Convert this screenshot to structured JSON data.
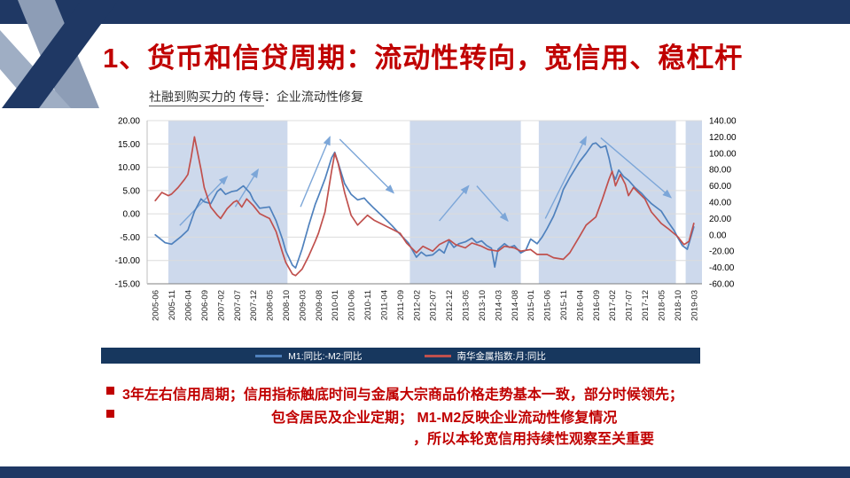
{
  "slide": {
    "title": "1、货币和信贷周期：流动性转向，宽信用、稳杠杆",
    "subtitle_underlined": "社融到购买力的 传导",
    "subtitle_rest": "：企业流动性修复"
  },
  "legend": {
    "items": [
      {
        "label": "M1:同比:-M2:同比",
        "color": "#4F81BD"
      },
      {
        "label": "南华金属指数:月:同比",
        "color": "#C0504D"
      }
    ]
  },
  "bullets": {
    "b1": "3年左右信用周期；信用指标触底时间与金属大宗商品价格走势基本一致，部分时候领先；",
    "b2": "包含居民及企业定期； M1-M2反映企业流动性修复情况",
    "b3": "，所以本轮宽信用持续性观察至关重要"
  },
  "colors": {
    "navy": "#1F3864",
    "legend_bar": "#17375E",
    "title_red": "#C00000",
    "series_blue": "#4F81BD",
    "series_red": "#C0504D",
    "band": "#CDD9EC",
    "grid": "#DCDCDC",
    "arrow": "#7CA6D8",
    "motif_slate": "#8D9DB6"
  },
  "chart_data": {
    "type": "line",
    "title": "社融到购买力的 传导：企业流动性修复",
    "x_labels": [
      "2005-06",
      "2005-11",
      "2006-04",
      "2006-09",
      "2007-02",
      "2007-07",
      "2007-12",
      "2008-05",
      "2008-10",
      "2009-03",
      "2009-08",
      "2010-01",
      "2010-06",
      "2010-11",
      "2011-04",
      "2011-09",
      "2012-02",
      "2012-07",
      "2012-12",
      "2013-05",
      "2013-10",
      "2014-03",
      "2014-08",
      "2015-01",
      "2015-06",
      "2015-11",
      "2016-04",
      "2016-09",
      "2017-02",
      "2017-07",
      "2017-12",
      "2018-05",
      "2018-10",
      "2019-03"
    ],
    "left_axis": {
      "min": -15,
      "max": 20,
      "ticks": [
        "20.00",
        "15.00",
        "10.00",
        "5.00",
        "0.00",
        "-5.00",
        "-10.00",
        "-15.00"
      ]
    },
    "right_axis": {
      "min": -60,
      "max": 140,
      "ticks": [
        "140.00",
        "120.00",
        "100.00",
        "80.00",
        "60.00",
        "40.00",
        "20.00",
        "0.00",
        "-20.00",
        "-40.00",
        "-60.00"
      ]
    },
    "shaded_bands": [
      [
        0.8,
        8.1
      ],
      [
        15.6,
        22.4
      ],
      [
        23.5,
        31.9
      ],
      [
        32.5,
        33.9
      ]
    ],
    "trend_arrows": [
      [
        1.5,
        -2.5,
        4.4,
        8
      ],
      [
        4.9,
        1.5,
        6.3,
        9.5
      ],
      [
        8.9,
        1.5,
        10.7,
        16.5
      ],
      [
        11.3,
        16,
        14.6,
        4.5
      ],
      [
        17.4,
        -1.5,
        19.2,
        6
      ],
      [
        19.7,
        6,
        21.6,
        -1.5
      ],
      [
        23.9,
        -1,
        26.4,
        16.5
      ],
      [
        27.3,
        16.3,
        31.6,
        3.5
      ]
    ],
    "series": [
      {
        "name": "M1:同比:-M2:同比",
        "axis": "left",
        "color": "#4F81BD",
        "points": [
          [
            0,
            -4.5
          ],
          [
            0.6,
            -6.2
          ],
          [
            1,
            -6.5
          ],
          [
            1.6,
            -4.8
          ],
          [
            2,
            -3.5
          ],
          [
            2.4,
            0.5
          ],
          [
            2.8,
            3.2
          ],
          [
            3,
            2.6
          ],
          [
            3.4,
            2.2
          ],
          [
            3.8,
            4.8
          ],
          [
            4,
            5.4
          ],
          [
            4.3,
            4.2
          ],
          [
            4.7,
            4.8
          ],
          [
            5,
            5
          ],
          [
            5.4,
            6
          ],
          [
            5.8,
            4.5
          ],
          [
            6,
            3
          ],
          [
            6.4,
            1.2
          ],
          [
            7,
            1.5
          ],
          [
            7.4,
            -1.5
          ],
          [
            7.8,
            -5.5
          ],
          [
            8,
            -8
          ],
          [
            8.4,
            -11
          ],
          [
            8.6,
            -11.6
          ],
          [
            9,
            -7.5
          ],
          [
            9.4,
            -2.5
          ],
          [
            9.8,
            2
          ],
          [
            10,
            3.8
          ],
          [
            10.4,
            7.5
          ],
          [
            10.8,
            12
          ],
          [
            11,
            13.2
          ],
          [
            11.2,
            11
          ],
          [
            11.6,
            6.5
          ],
          [
            12,
            4.2
          ],
          [
            12.4,
            3
          ],
          [
            12.8,
            3.4
          ],
          [
            13,
            2.6
          ],
          [
            13.4,
            1.2
          ],
          [
            14,
            -0.8
          ],
          [
            14.5,
            -2.5
          ],
          [
            15,
            -4.4
          ],
          [
            15.5,
            -6.2
          ],
          [
            16,
            -9.3
          ],
          [
            16.3,
            -8.2
          ],
          [
            16.6,
            -9
          ],
          [
            17,
            -8.8
          ],
          [
            17.4,
            -7.6
          ],
          [
            17.7,
            -8.4
          ],
          [
            18,
            -5.8
          ],
          [
            18.3,
            -7.2
          ],
          [
            18.6,
            -6.4
          ],
          [
            19,
            -6
          ],
          [
            19.4,
            -5.2
          ],
          [
            19.7,
            -6.2
          ],
          [
            20,
            -5.8
          ],
          [
            20.3,
            -6.8
          ],
          [
            20.6,
            -7.4
          ],
          [
            20.8,
            -11.4
          ],
          [
            21,
            -7.6
          ],
          [
            21.4,
            -6.4
          ],
          [
            21.7,
            -7.2
          ],
          [
            22,
            -6.8
          ],
          [
            22.4,
            -8.4
          ],
          [
            22.7,
            -7.8
          ],
          [
            23,
            -5.4
          ],
          [
            23.4,
            -6.4
          ],
          [
            23.7,
            -5
          ],
          [
            24,
            -3.2
          ],
          [
            24.4,
            -0.5
          ],
          [
            24.8,
            3
          ],
          [
            25,
            5.2
          ],
          [
            25.4,
            7.8
          ],
          [
            26,
            11.2
          ],
          [
            26.4,
            13
          ],
          [
            26.8,
            15
          ],
          [
            27,
            15.2
          ],
          [
            27.3,
            14.2
          ],
          [
            27.6,
            14.6
          ],
          [
            27.8,
            12
          ],
          [
            28,
            8.8
          ],
          [
            28.2,
            7.4
          ],
          [
            28.4,
            9.4
          ],
          [
            28.7,
            8
          ],
          [
            29,
            7.2
          ],
          [
            29.4,
            5.6
          ],
          [
            29.8,
            4.4
          ],
          [
            30,
            3.6
          ],
          [
            30.4,
            2.2
          ],
          [
            31,
            0.6
          ],
          [
            31.4,
            -1.6
          ],
          [
            31.8,
            -3.6
          ],
          [
            32,
            -5
          ],
          [
            32.3,
            -6.8
          ],
          [
            32.6,
            -7.6
          ],
          [
            32.8,
            -5.2
          ],
          [
            33,
            -2.8
          ]
        ]
      },
      {
        "name": "南华金属指数:月:同比",
        "axis": "right",
        "color": "#C0504D",
        "points": [
          [
            0,
            42
          ],
          [
            0.4,
            52
          ],
          [
            0.8,
            48
          ],
          [
            1,
            50
          ],
          [
            1.4,
            58
          ],
          [
            1.8,
            68
          ],
          [
            2,
            74
          ],
          [
            2.2,
            95
          ],
          [
            2.4,
            120
          ],
          [
            2.6,
            100
          ],
          [
            2.8,
            80
          ],
          [
            3,
            58
          ],
          [
            3.4,
            34
          ],
          [
            3.8,
            24
          ],
          [
            4,
            20
          ],
          [
            4.4,
            32
          ],
          [
            4.8,
            40
          ],
          [
            5,
            42
          ],
          [
            5.3,
            34
          ],
          [
            5.6,
            44
          ],
          [
            6,
            36
          ],
          [
            6.4,
            26
          ],
          [
            6.8,
            22
          ],
          [
            7,
            20
          ],
          [
            7.4,
            4
          ],
          [
            7.8,
            -22
          ],
          [
            8,
            -34
          ],
          [
            8.4,
            -48
          ],
          [
            8.6,
            -50
          ],
          [
            9,
            -42
          ],
          [
            9.4,
            -26
          ],
          [
            9.8,
            -8
          ],
          [
            10,
            2
          ],
          [
            10.4,
            28
          ],
          [
            10.8,
            78
          ],
          [
            11,
            100
          ],
          [
            11.2,
            88
          ],
          [
            11.6,
            52
          ],
          [
            12,
            24
          ],
          [
            12.4,
            12
          ],
          [
            12.8,
            20
          ],
          [
            13,
            24
          ],
          [
            13.4,
            18
          ],
          [
            14,
            12
          ],
          [
            14.4,
            8
          ],
          [
            15,
            2
          ],
          [
            15.4,
            -10
          ],
          [
            16,
            -22
          ],
          [
            16.4,
            -14
          ],
          [
            17,
            -20
          ],
          [
            17.4,
            -12
          ],
          [
            18,
            -6
          ],
          [
            18.4,
            -12
          ],
          [
            19,
            -16
          ],
          [
            19.4,
            -10
          ],
          [
            20,
            -14
          ],
          [
            20.4,
            -18
          ],
          [
            21,
            -20
          ],
          [
            21.4,
            -14
          ],
          [
            22,
            -16
          ],
          [
            22.4,
            -20
          ],
          [
            23,
            -18
          ],
          [
            23.4,
            -24
          ],
          [
            24,
            -24
          ],
          [
            24.4,
            -28
          ],
          [
            25,
            -30
          ],
          [
            25.4,
            -22
          ],
          [
            26,
            -2
          ],
          [
            26.4,
            12
          ],
          [
            27,
            22
          ],
          [
            27.4,
            44
          ],
          [
            27.8,
            68
          ],
          [
            28,
            78
          ],
          [
            28.2,
            60
          ],
          [
            28.5,
            74
          ],
          [
            28.8,
            62
          ],
          [
            29,
            48
          ],
          [
            29.3,
            58
          ],
          [
            29.6,
            52
          ],
          [
            30,
            44
          ],
          [
            30.4,
            28
          ],
          [
            31,
            14
          ],
          [
            31.4,
            8
          ],
          [
            32,
            -2
          ],
          [
            32.4,
            -12
          ],
          [
            32.7,
            -8
          ],
          [
            33,
            14
          ]
        ]
      }
    ]
  }
}
